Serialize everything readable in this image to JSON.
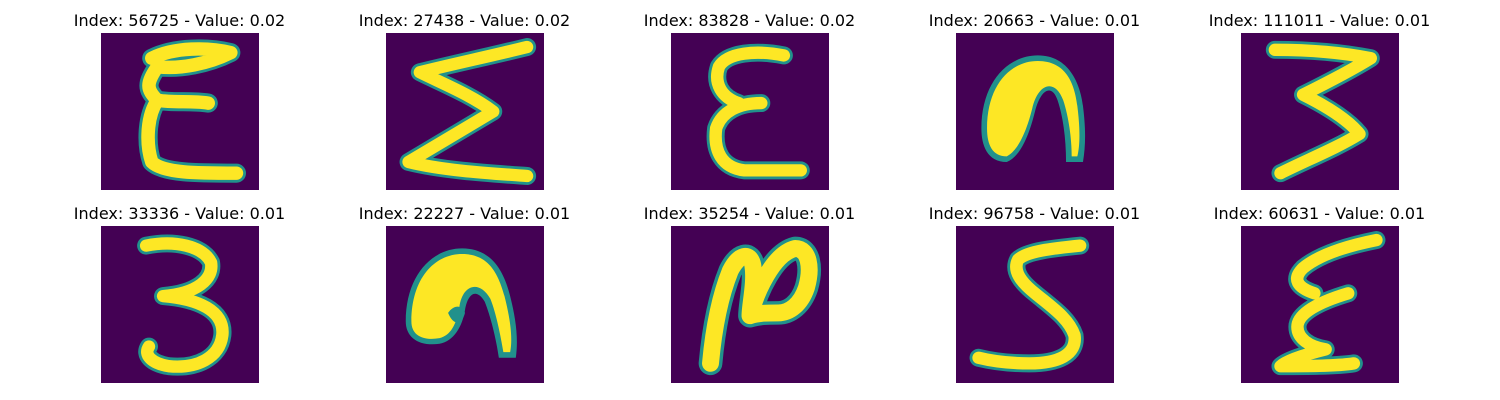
{
  "figure": {
    "colormap": "viridis",
    "background_color": "#440154",
    "stroke_color": "#fde725",
    "edge_color": "#21918c",
    "panels": [
      {
        "title": "Index: 56725 - Value: 0.02",
        "glyph": "epsilon-open-loops"
      },
      {
        "title": "Index: 27438 - Value: 0.02",
        "glyph": "sigma-zigzag"
      },
      {
        "title": "Index: 83828 - Value: 0.02",
        "glyph": "epsilon"
      },
      {
        "title": "Index: 20663 - Value: 0.01",
        "glyph": "filled-arch"
      },
      {
        "title": "Index: 111011 - Value: 0.01",
        "glyph": "reversed-zigzag-3"
      },
      {
        "title": "Index: 33336 - Value: 0.01",
        "glyph": "three"
      },
      {
        "title": "Index: 22227 - Value: 0.01",
        "glyph": "filled-arch-hooked"
      },
      {
        "title": "Index: 35254 - Value: 0.01",
        "glyph": "n-with-loop"
      },
      {
        "title": "Index: 96758 - Value: 0.01",
        "glyph": "five"
      },
      {
        "title": "Index: 60631 - Value: 0.01",
        "glyph": "slanted-epsilon"
      }
    ]
  }
}
